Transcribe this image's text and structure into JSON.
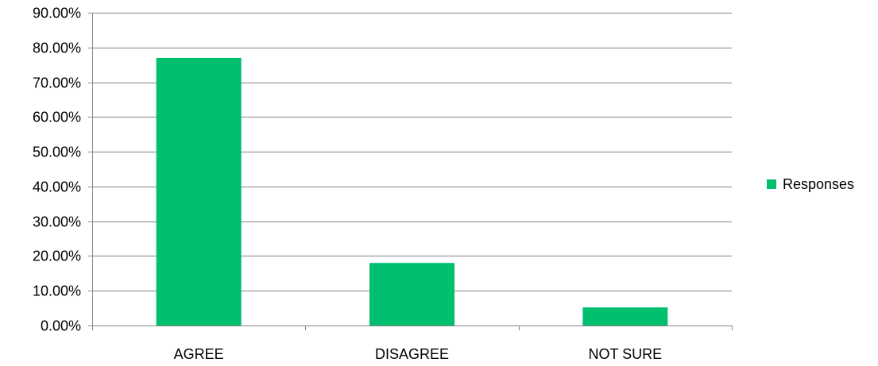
{
  "chart_data": {
    "type": "bar",
    "categories": [
      "AGREE",
      "DISAGREE",
      "NOT SURE"
    ],
    "series": [
      {
        "name": "Responses",
        "values": [
          0.77,
          0.18,
          0.052
        ],
        "color": "#00BF6F"
      }
    ],
    "y_ticks": [
      "0.00%",
      "10.00%",
      "20.00%",
      "30.00%",
      "40.00%",
      "50.00%",
      "60.00%",
      "70.00%",
      "80.00%",
      "90.00%"
    ],
    "ylim": [
      0,
      0.9
    ],
    "grid": true,
    "gridline_color": "#868686",
    "legend_position": "right"
  }
}
